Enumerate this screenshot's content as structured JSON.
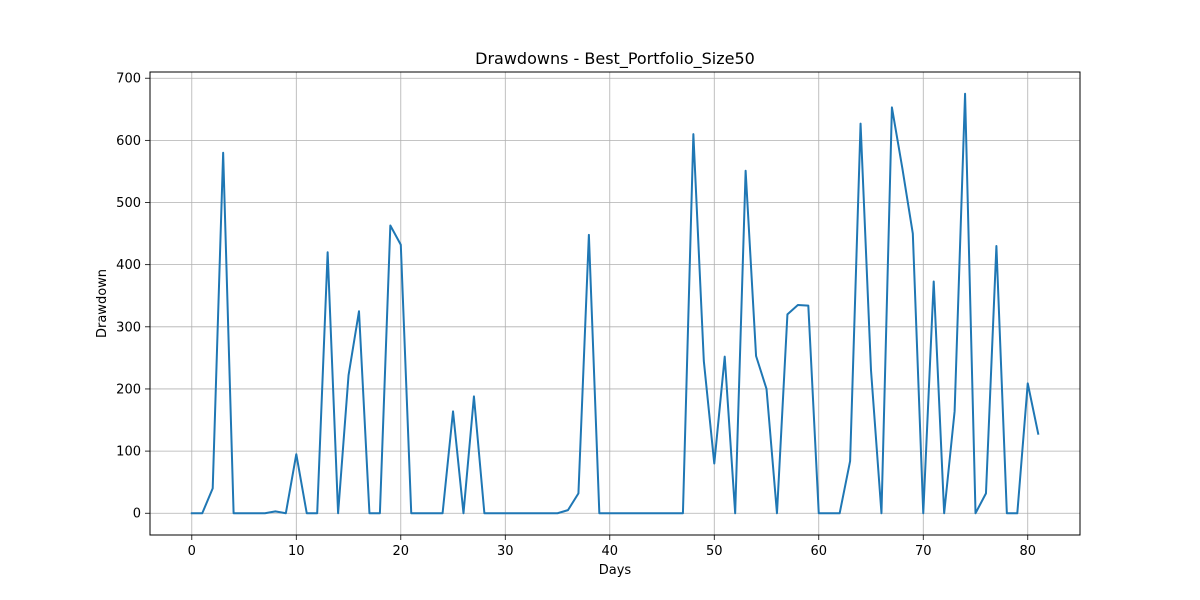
{
  "chart_data": {
    "type": "line",
    "title": "Drawdowns - Best_Portfolio_Size50",
    "xlabel": "Days",
    "ylabel": "Drawdown",
    "xlim": [
      -4,
      85
    ],
    "ylim": [
      -35,
      710
    ],
    "grid": true,
    "line_color": "#1f77b4",
    "x_ticks": [
      0,
      10,
      20,
      30,
      40,
      50,
      60,
      70,
      80
    ],
    "y_ticks": [
      0,
      100,
      200,
      300,
      400,
      500,
      600,
      700
    ],
    "series": [
      {
        "x": [
          0,
          1,
          2,
          3,
          4,
          5,
          6,
          7,
          8,
          9,
          10,
          11,
          12,
          13,
          14,
          15,
          16,
          17,
          18,
          19,
          20,
          21,
          22,
          23,
          24,
          25,
          26,
          27,
          28,
          29,
          30,
          31,
          32,
          33,
          34,
          35,
          36,
          37,
          38,
          39,
          40,
          41,
          42,
          43,
          44,
          45,
          46,
          47,
          48,
          49,
          50,
          51,
          52,
          53,
          54,
          55,
          56,
          57,
          58,
          59,
          60,
          61,
          62,
          63,
          64,
          65,
          66,
          67,
          68,
          69,
          70,
          71,
          72,
          73,
          74,
          75,
          76,
          77,
          78,
          79,
          80,
          81
        ],
        "y": [
          0,
          0,
          40,
          580,
          0,
          0,
          0,
          0,
          3,
          0,
          95,
          0,
          0,
          420,
          0,
          222,
          325,
          0,
          0,
          463,
          432,
          0,
          0,
          0,
          0,
          164,
          0,
          188,
          0,
          0,
          0,
          0,
          0,
          0,
          0,
          0,
          5,
          32,
          448,
          0,
          0,
          0,
          0,
          0,
          0,
          0,
          0,
          0,
          610,
          245,
          80,
          252,
          0,
          551,
          253,
          200,
          0,
          320,
          335,
          334,
          0,
          0,
          0,
          84,
          627,
          230,
          0,
          653,
          555,
          450,
          0,
          373,
          0,
          164,
          675,
          0,
          32,
          430,
          0,
          0,
          209,
          128
        ]
      }
    ]
  }
}
